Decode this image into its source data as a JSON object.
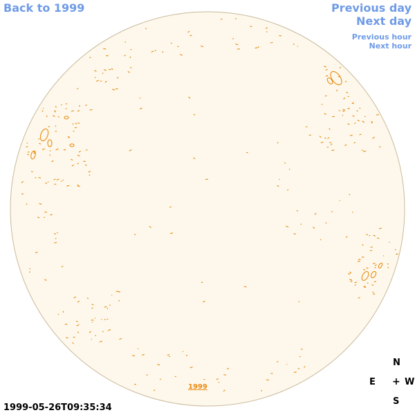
{
  "nav": {
    "back_label": "Back to 1999",
    "previous_day_label": "Previous day",
    "next_day_label": "Next day",
    "previous_hour_label": "Previous hour",
    "next_hour_label": "Next hour"
  },
  "disk": {
    "year_label": "1999"
  },
  "compass": {
    "north": "N",
    "south": "S",
    "east": "E",
    "west": "W",
    "center": "+"
  },
  "timestamp": "1999-05-26T09:35:34",
  "colors": {
    "link": "#6f9be6",
    "disk_fill": "#fdf8eb",
    "disk_stroke": "#c9b99c",
    "contour": "#e88a12"
  }
}
